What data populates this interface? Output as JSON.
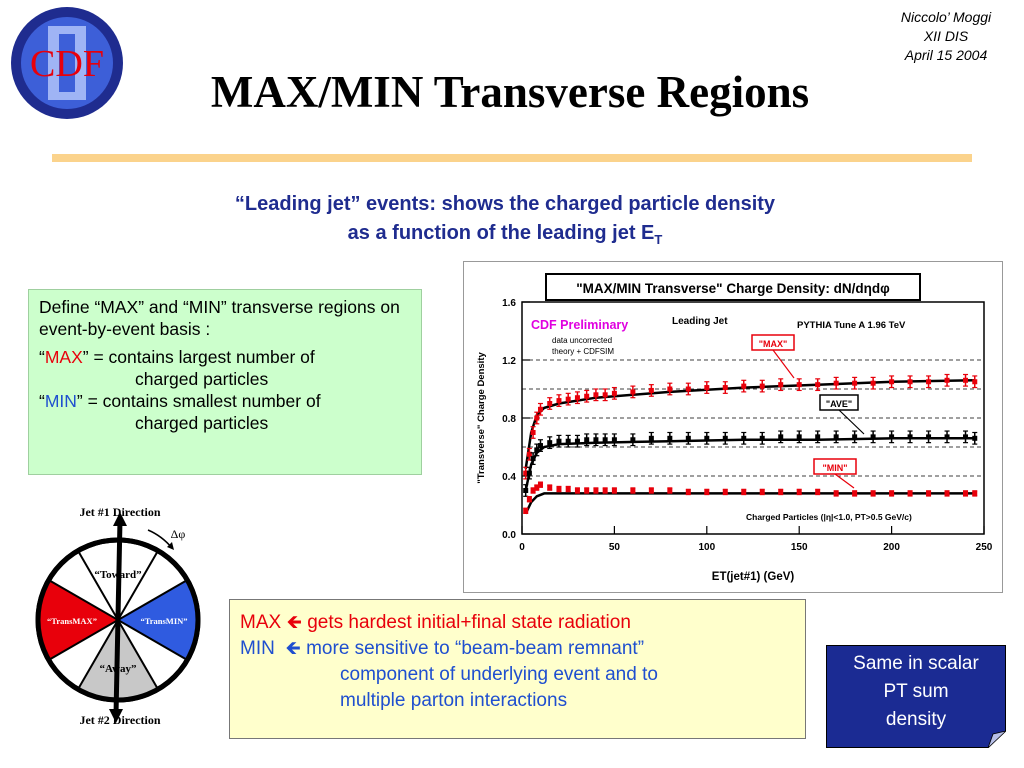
{
  "logo": {
    "text": "CDF",
    "ring_color": "#1f2c8f",
    "fill_color": "#e8000b"
  },
  "author": {
    "name": "Niccolo’ Moggi",
    "conference": "XII DIS",
    "date": "April 15 2004"
  },
  "title": "MAX/MIN Transverse Regions",
  "subtitle": {
    "line1": "“Leading jet” events: shows the charged particle density",
    "line2_pre": "as a function of the leading jet E",
    "line2_sub": "T"
  },
  "definition": {
    "intro": "Define “MAX” and “MIN” transverse regions on event-by-event basis :",
    "max_open": "“",
    "max_word": "MAX",
    "max_close": "” = contains largest number of",
    "max_cont": "charged particles",
    "min_open": "“",
    "min_word": "MIN",
    "min_close": "” = contains smallest number of",
    "min_cont": "charged particles"
  },
  "jet_diagram": {
    "jet1": "Jet #1 Direction",
    "jet2": "Jet #2 Direction",
    "dphi": "Δφ",
    "toward": "“Toward”",
    "away": "“Away”",
    "transmax": "“TransMAX”",
    "transmin": "“TransMIN”",
    "colors": {
      "transmax": "#e8000b",
      "transmin": "#2f5be0",
      "away": "#c8c8c8"
    }
  },
  "radiation": {
    "line1_label": "MAX",
    "line1_arrow": "🡸",
    "line1_text": "gets hardest initial+final state radiation",
    "line2_label": "MIN",
    "line2_arrow": "🡸",
    "line2_text": "more sensitive to “beam-beam remnant”",
    "line3": "component of underlying event and to",
    "line4": "multiple parton interactions"
  },
  "scalar_note": {
    "line1": "Same in scalar",
    "line2": "PT sum",
    "line3": "density"
  },
  "chart_data": {
    "type": "scatter",
    "title": "\"MAX/MIN Transverse\" Charge Density: dN/dηdφ",
    "xlabel": "ET(jet#1)   (GeV)",
    "ylabel": "\"Transverse\" Charge Density",
    "xlim": [
      0,
      250
    ],
    "ylim": [
      0.0,
      1.6
    ],
    "xticks": [
      "0",
      "50",
      "100",
      "150",
      "200",
      "250"
    ],
    "yticks": [
      "0.0",
      "0.4",
      "0.8",
      "1.2",
      "1.6"
    ],
    "annotations": {
      "preliminary": "CDF Preliminary",
      "uncorrected_1": "data uncorrected",
      "uncorrected_2": "theory + CDFSIM",
      "leading_jet": "Leading Jet",
      "pythia": "PYTHIA Tune A 1.96 TeV",
      "cuts": "Charged Particles (|η|<1.0, PT>0.5 GeV/c)",
      "max_label": "\"MAX\"",
      "ave_label": "\"AVE\"",
      "min_label": "\"MIN\""
    },
    "colors": {
      "max": "#e8000b",
      "ave": "#000000",
      "min": "#e8000b",
      "theory": "#000000"
    },
    "series": [
      {
        "name": "\"MAX\"",
        "x": [
          2,
          4,
          6,
          8,
          10,
          15,
          20,
          25,
          30,
          35,
          40,
          45,
          50,
          60,
          70,
          80,
          90,
          100,
          110,
          120,
          130,
          140,
          150,
          160,
          170,
          180,
          190,
          200,
          210,
          220,
          230,
          240,
          245
        ],
        "y": [
          0.42,
          0.55,
          0.7,
          0.8,
          0.86,
          0.9,
          0.92,
          0.93,
          0.94,
          0.95,
          0.96,
          0.96,
          0.97,
          0.98,
          0.99,
          1.0,
          1.0,
          1.01,
          1.01,
          1.02,
          1.02,
          1.03,
          1.03,
          1.03,
          1.04,
          1.04,
          1.04,
          1.05,
          1.05,
          1.05,
          1.06,
          1.06,
          1.05
        ]
      },
      {
        "name": "\"AVE\"",
        "x": [
          2,
          4,
          6,
          8,
          10,
          15,
          20,
          25,
          30,
          35,
          40,
          45,
          50,
          60,
          70,
          80,
          90,
          100,
          110,
          120,
          130,
          140,
          150,
          160,
          170,
          180,
          190,
          200,
          210,
          220,
          230,
          240,
          245
        ],
        "y": [
          0.3,
          0.42,
          0.52,
          0.58,
          0.61,
          0.63,
          0.64,
          0.64,
          0.64,
          0.65,
          0.65,
          0.65,
          0.65,
          0.65,
          0.66,
          0.66,
          0.66,
          0.66,
          0.66,
          0.66,
          0.66,
          0.67,
          0.67,
          0.67,
          0.67,
          0.67,
          0.67,
          0.67,
          0.67,
          0.67,
          0.67,
          0.67,
          0.66
        ]
      },
      {
        "name": "\"MIN\"",
        "x": [
          2,
          4,
          6,
          8,
          10,
          15,
          20,
          25,
          30,
          35,
          40,
          45,
          50,
          60,
          70,
          80,
          90,
          100,
          110,
          120,
          130,
          140,
          150,
          160,
          170,
          180,
          190,
          200,
          210,
          220,
          230,
          240,
          245
        ],
        "y": [
          0.16,
          0.24,
          0.3,
          0.32,
          0.34,
          0.32,
          0.31,
          0.31,
          0.3,
          0.3,
          0.3,
          0.3,
          0.3,
          0.3,
          0.3,
          0.3,
          0.29,
          0.29,
          0.29,
          0.29,
          0.29,
          0.29,
          0.29,
          0.29,
          0.28,
          0.28,
          0.28,
          0.28,
          0.28,
          0.28,
          0.28,
          0.28,
          0.28
        ]
      }
    ],
    "theory": [
      {
        "series": "\"MAX\"",
        "x": [
          2,
          5,
          8,
          12,
          20,
          40,
          80,
          120,
          160,
          200,
          245
        ],
        "y": [
          0.45,
          0.7,
          0.82,
          0.87,
          0.9,
          0.94,
          0.98,
          1.01,
          1.03,
          1.05,
          1.06
        ]
      },
      {
        "series": "\"AVE\"",
        "x": [
          2,
          5,
          8,
          12,
          20,
          40,
          80,
          120,
          160,
          200,
          245
        ],
        "y": [
          0.3,
          0.48,
          0.56,
          0.6,
          0.62,
          0.63,
          0.64,
          0.65,
          0.65,
          0.66,
          0.66
        ]
      },
      {
        "series": "\"MIN\"",
        "x": [
          2,
          5,
          8,
          12,
          20,
          40,
          80,
          120,
          160,
          200,
          245
        ],
        "y": [
          0.14,
          0.22,
          0.26,
          0.28,
          0.28,
          0.28,
          0.28,
          0.28,
          0.28,
          0.28,
          0.28
        ]
      }
    ],
    "dashed_reference_lines": [
      1.2,
      1.0,
      0.8,
      0.6,
      0.4
    ],
    "grid": false,
    "legend": "none"
  }
}
